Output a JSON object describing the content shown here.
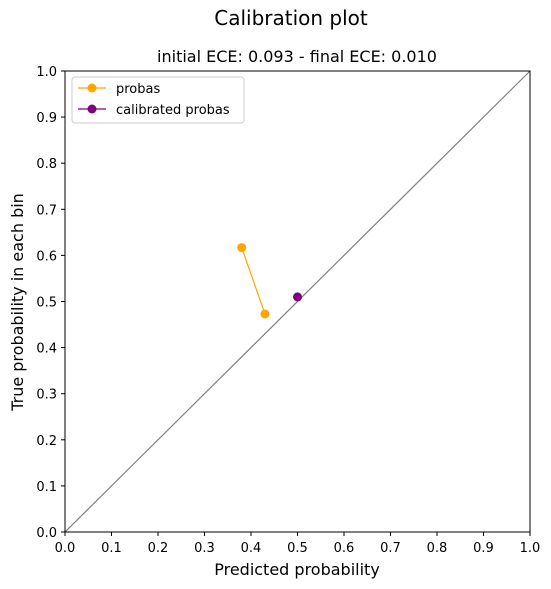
{
  "chart_data": {
    "type": "line",
    "title": "Calibration plot",
    "subtitle": "initial ECE: 0.093 - final ECE: 0.010",
    "xlabel": "Predicted probability",
    "ylabel": "True probability in each bin",
    "xlim": [
      0.0,
      1.0
    ],
    "ylim": [
      0.0,
      1.0
    ],
    "xticks": [
      "0.0",
      "0.1",
      "0.2",
      "0.3",
      "0.4",
      "0.5",
      "0.6",
      "0.7",
      "0.8",
      "0.9",
      "1.0"
    ],
    "yticks": [
      "0.0",
      "0.1",
      "0.2",
      "0.3",
      "0.4",
      "0.5",
      "0.6",
      "0.7",
      "0.8",
      "0.9",
      "1.0"
    ],
    "grid": false,
    "legend_position": "top-left",
    "reference_line": {
      "x": [
        0.0,
        1.0
      ],
      "y": [
        0.0,
        1.0
      ],
      "color": "#808080"
    },
    "series": [
      {
        "name": "probas",
        "color": "#ffa500",
        "marker": "circle",
        "points": [
          {
            "x": 0.38,
            "y": 0.617
          },
          {
            "x": 0.43,
            "y": 0.473
          }
        ]
      },
      {
        "name": "calibrated probas",
        "color": "#800080",
        "marker": "circle",
        "points": [
          {
            "x": 0.5,
            "y": 0.51
          }
        ]
      }
    ]
  }
}
